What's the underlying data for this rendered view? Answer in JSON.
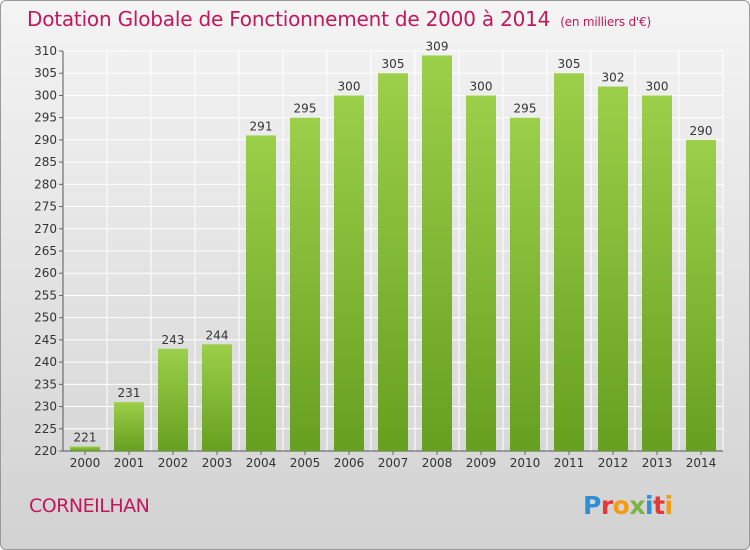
{
  "title": "Dotation Globale de Fonctionnement de 2000 à 2014",
  "subtitle": "(en milliers d'€)",
  "place": "CORNEILHAN",
  "logo": {
    "text": "Proxiti",
    "letters": [
      {
        "ch": "P",
        "color": "#2d8fd5"
      },
      {
        "ch": "r",
        "color": "#e53935"
      },
      {
        "ch": "o",
        "color": "#f39c12"
      },
      {
        "ch": "x",
        "color": "#7cb342"
      },
      {
        "ch": "i",
        "color": "#2d8fd5"
      },
      {
        "ch": "t",
        "color": "#e53935"
      },
      {
        "ch": "i",
        "color": "#f39c12"
      }
    ]
  },
  "chart_data": {
    "type": "bar",
    "categories": [
      "2000",
      "2001",
      "2002",
      "2003",
      "2004",
      "2005",
      "2006",
      "2007",
      "2008",
      "2009",
      "2010",
      "2011",
      "2012",
      "2013",
      "2014"
    ],
    "values": [
      221,
      231,
      243,
      244,
      291,
      295,
      300,
      305,
      309,
      300,
      295,
      305,
      302,
      300,
      290
    ],
    "ylim": [
      220,
      310
    ],
    "yticks": [
      220,
      225,
      230,
      235,
      240,
      245,
      250,
      255,
      260,
      265,
      270,
      275,
      280,
      285,
      290,
      295,
      300,
      305,
      310
    ],
    "grid": true,
    "bar_color": "#8cc63f",
    "bar_color_dark": "#6aa12a"
  }
}
